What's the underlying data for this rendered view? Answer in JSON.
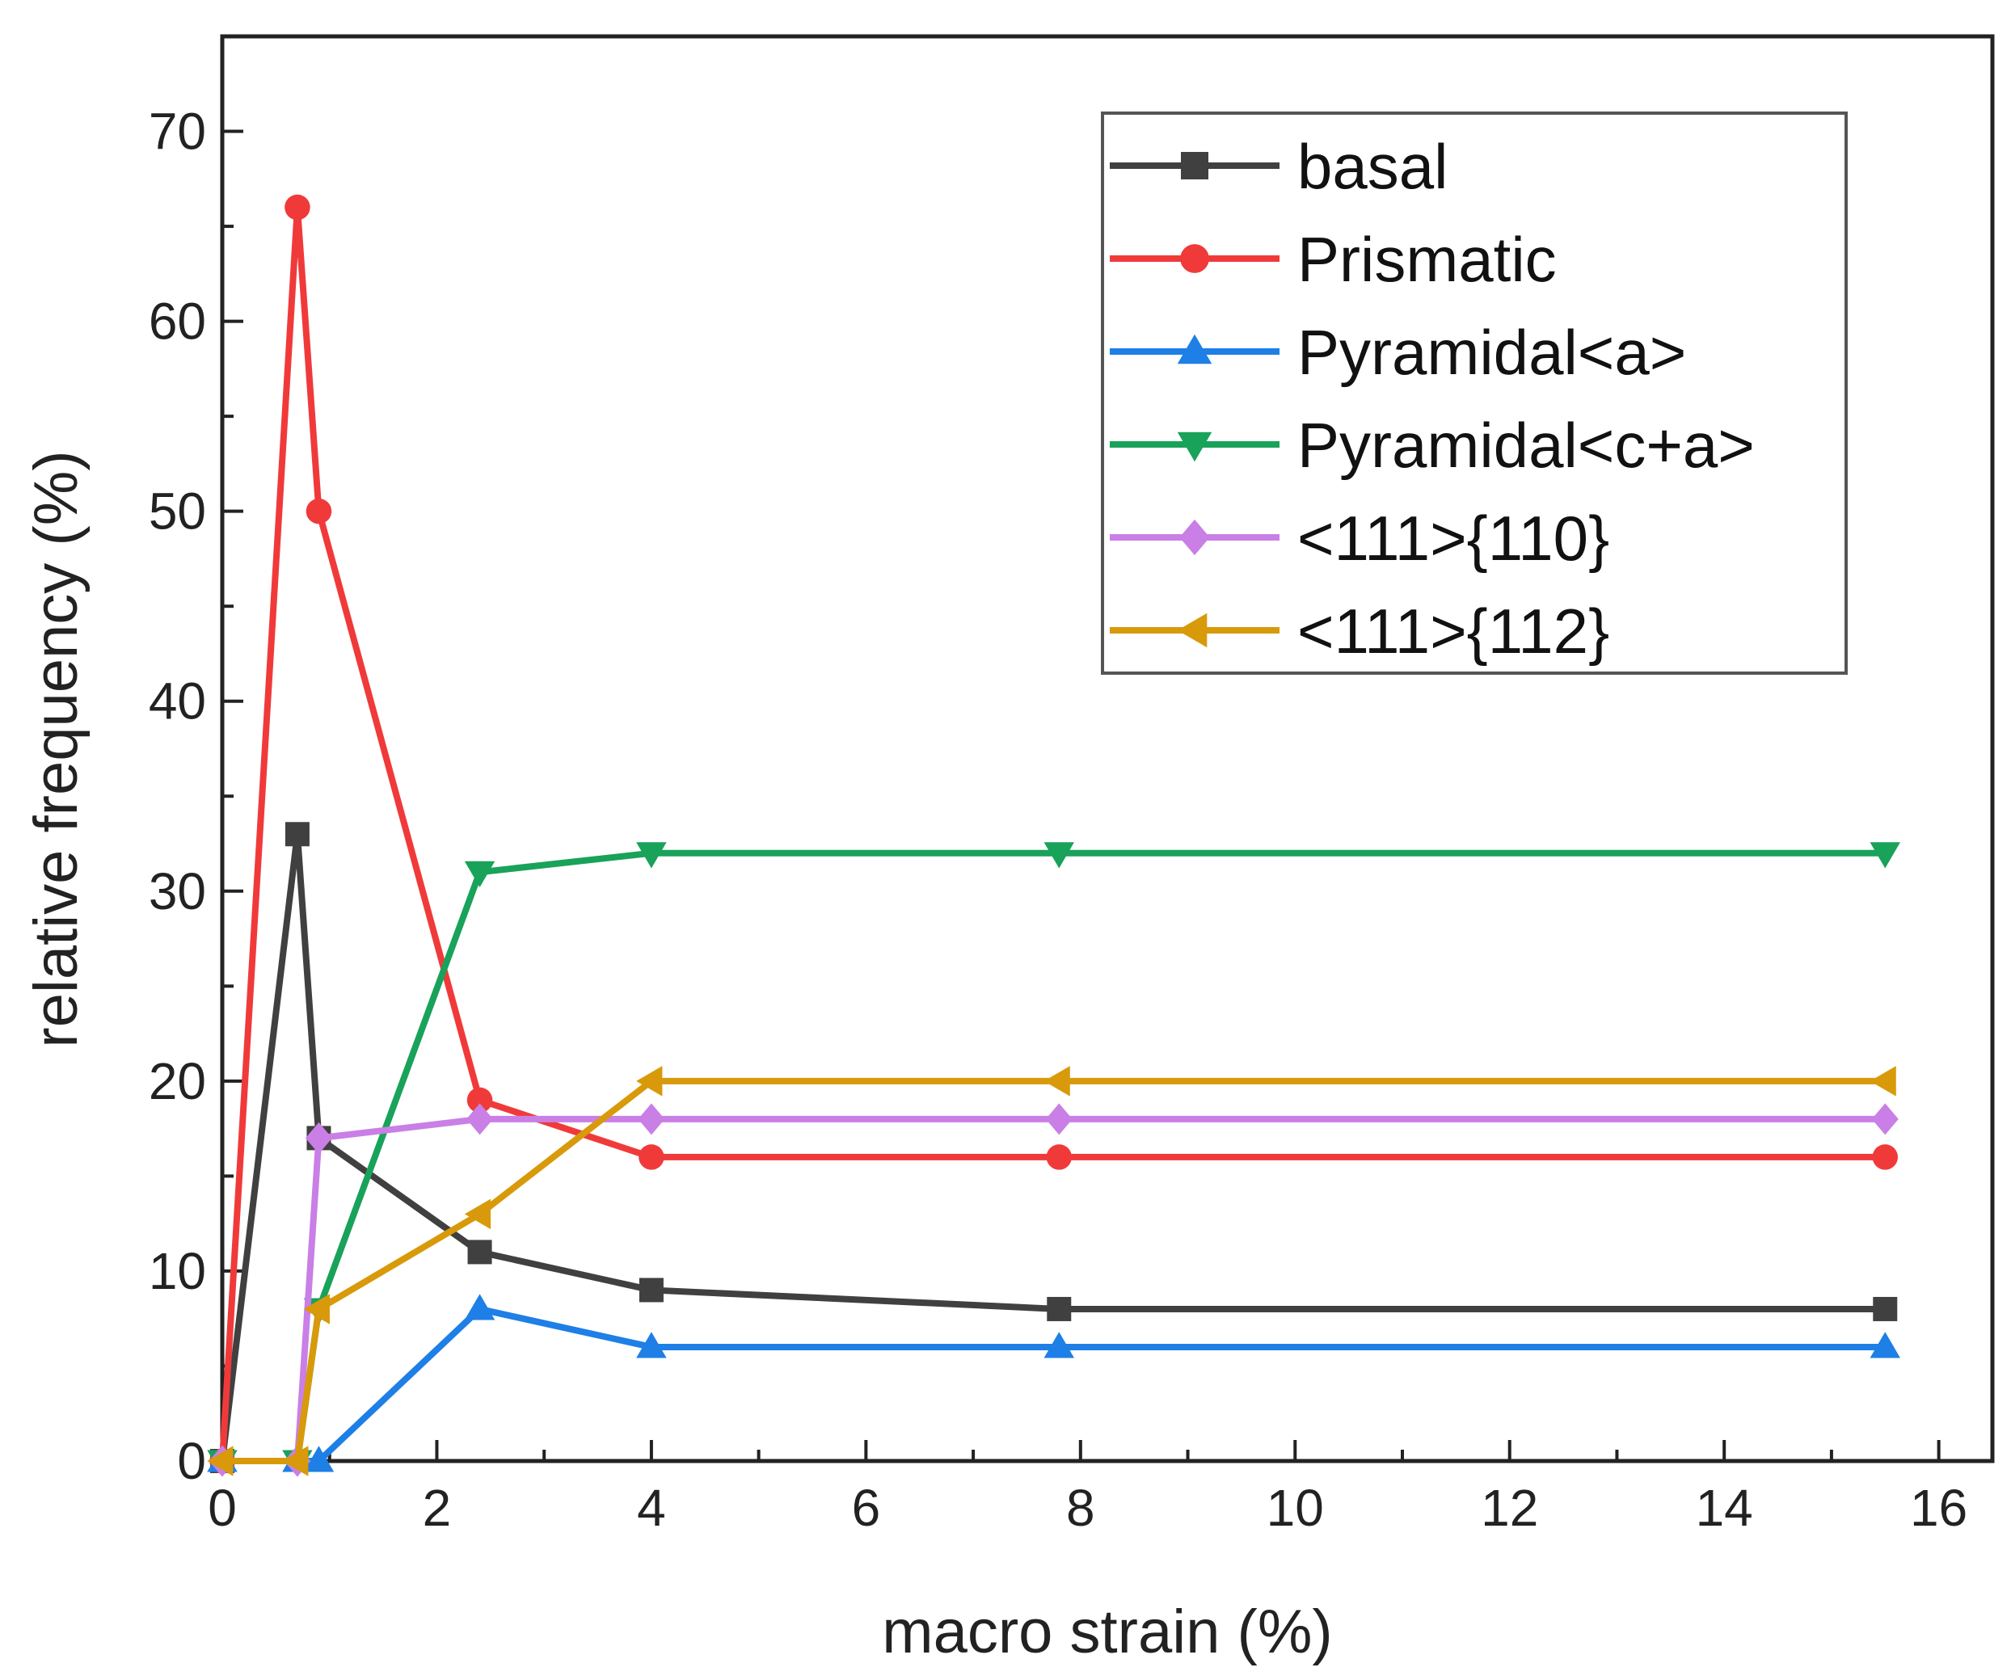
{
  "chart_data": {
    "type": "line",
    "title": "",
    "xlabel": "macro strain (%)",
    "ylabel": "relative frequency (%)",
    "xlim": [
      0,
      16.5
    ],
    "ylim": [
      0,
      75
    ],
    "xticks": [
      0,
      2,
      4,
      6,
      8,
      10,
      12,
      14,
      16
    ],
    "yticks": [
      0,
      10,
      20,
      30,
      40,
      50,
      60,
      70
    ],
    "xtick_labels": [
      "0",
      "2",
      "4",
      "6",
      "8",
      "10",
      "12",
      "14",
      "16"
    ],
    "ytick_labels": [
      "0",
      "10",
      "20",
      "30",
      "40",
      "50",
      "60",
      "70"
    ],
    "grid": false,
    "legend_position": "top-right",
    "x": [
      0,
      0.7,
      0.9,
      2.4,
      4,
      7.8,
      15.5
    ],
    "series": [
      {
        "name": "basal",
        "color": "#404040",
        "marker": "square",
        "values": [
          0,
          33,
          17,
          11,
          9,
          8,
          8
        ]
      },
      {
        "name": "Prismatic",
        "color": "#f03a3a",
        "marker": "circle",
        "values": [
          0,
          66,
          50,
          19,
          16,
          16,
          16
        ]
      },
      {
        "name": "Pyramidal<a>",
        "color": "#1e7fe6",
        "marker": "triangle-up",
        "values": [
          0,
          0,
          0,
          8,
          6,
          6,
          6
        ]
      },
      {
        "name": "Pyramidal<c+a>",
        "color": "#19a25a",
        "marker": "triangle-down",
        "values": [
          0,
          0,
          8,
          31,
          32,
          32,
          32
        ]
      },
      {
        "name": "<111>{110}",
        "color": "#c97fe6",
        "marker": "diamond",
        "values": [
          0,
          0,
          17,
          18,
          18,
          18,
          18
        ]
      },
      {
        "name": "<111>{112}",
        "color": "#d89a0a",
        "marker": "triangle-left",
        "values": [
          0,
          0,
          8,
          13,
          20,
          20,
          20
        ]
      }
    ]
  }
}
